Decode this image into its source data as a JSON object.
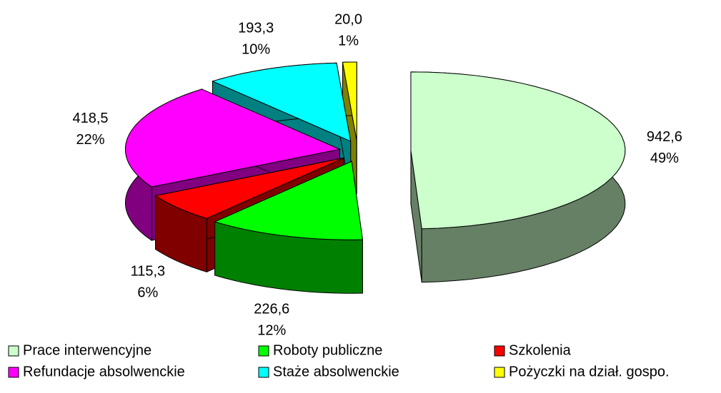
{
  "chart_data": {
    "type": "pie",
    "categories": [
      "Prace interwencyjne",
      "Roboty publiczne",
      "Szkolenia",
      "Refundacje absolwenckie",
      "Staże absolwenckie",
      "Pożyczki na dział. gospo."
    ],
    "values": [
      942.6,
      226.6,
      115.3,
      418.5,
      193.3,
      20.0
    ],
    "value_labels": [
      "942,6",
      "226,6",
      "115,3",
      "418,5",
      "193,3",
      "20,0"
    ],
    "percents": [
      49,
      12,
      6,
      22,
      10,
      1
    ],
    "percent_labels": [
      "49%",
      "12%",
      "6%",
      "22%",
      "10%",
      "1%"
    ],
    "colors": [
      "#ccffcc",
      "#00ff00",
      "#ff0000",
      "#ff00ff",
      "#00ffff",
      "#ffff00"
    ],
    "legend": "bottom"
  }
}
